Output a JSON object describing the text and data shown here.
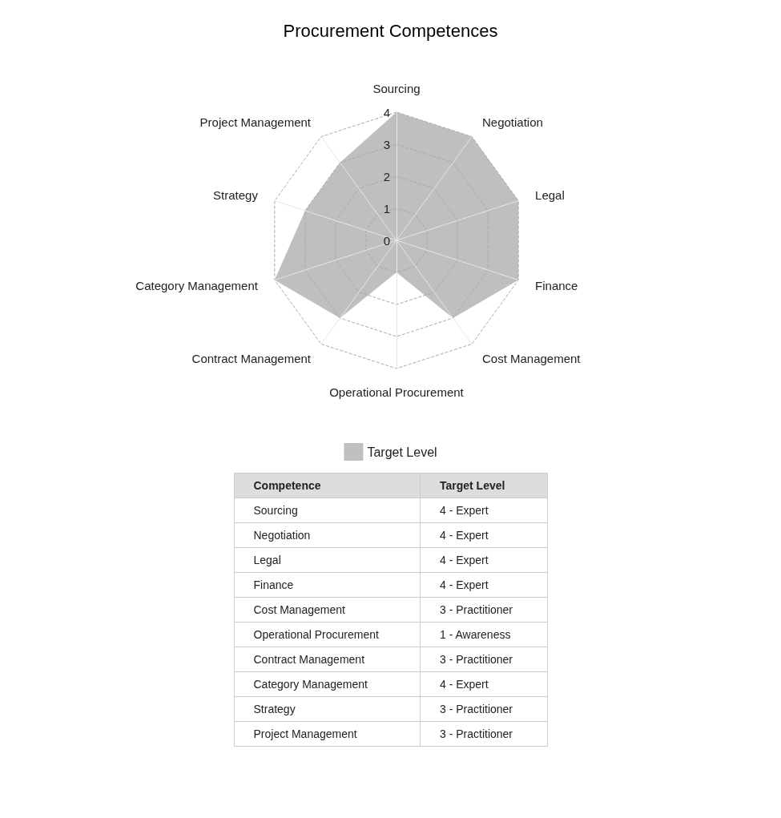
{
  "chart_data": {
    "type": "radar",
    "title": "Procurement Competences",
    "categories": [
      "Sourcing",
      "Negotiation",
      "Legal",
      "Finance",
      "Cost Management",
      "Operational Procurement",
      "Contract Management",
      "Category Management",
      "Strategy",
      "Project Management"
    ],
    "series": [
      {
        "name": "Target Level",
        "color": "#bfbfbf",
        "values": [
          4,
          4,
          4,
          4,
          3,
          1,
          3,
          4,
          3,
          3
        ]
      }
    ],
    "value_labels": [
      "4 - Expert",
      "4 - Expert",
      "4 - Expert",
      "4 - Expert",
      "3 - Practitioner",
      "1 - Awareness",
      "3 - Practitioner",
      "4 - Expert",
      "3 - Practitioner",
      "3 - Practitioner"
    ],
    "ylim": [
      0,
      4
    ],
    "yticks": [
      0,
      1,
      2,
      3,
      4
    ],
    "grid": true,
    "legend": "bottom",
    "annotations": [
      "Competence"
    ]
  }
}
